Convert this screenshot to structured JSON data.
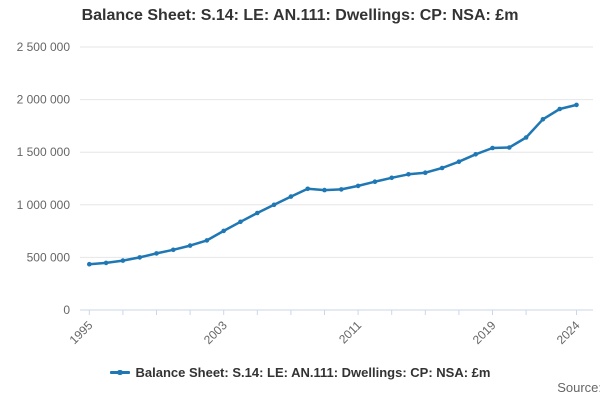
{
  "page": {
    "title": "Balance Sheet: S.14: LE: AN.111: Dwellings: CP: NSA: £m",
    "source_label": "Source:"
  },
  "legend": {
    "label": "Balance Sheet: S.14: LE: AN.111: Dwellings: CP: NSA: £m"
  },
  "colors": {
    "line": "#1f77b4",
    "grid": "#e6e6e6",
    "axis": "#ccd6eb",
    "tick_label": "#666666",
    "title_text": "#333333",
    "legend_text": "#333333",
    "source_text": "#666666",
    "background": "#ffffff"
  },
  "chart_data": {
    "type": "line",
    "title": "Balance Sheet: S.14: LE: AN.111: Dwellings: CP: NSA: £m",
    "series_name": "Balance Sheet: S.14: LE: AN.111: Dwellings: CP: NSA: £m",
    "xlabel": "",
    "ylabel": "",
    "x": [
      1995,
      1996,
      1997,
      1998,
      1999,
      2000,
      2001,
      2002,
      2003,
      2004,
      2005,
      2006,
      2007,
      2008,
      2009,
      2010,
      2011,
      2012,
      2013,
      2014,
      2015,
      2016,
      2017,
      2018,
      2019,
      2020,
      2021,
      2022,
      2023,
      2024
    ],
    "values": [
      435000,
      448000,
      470000,
      500000,
      538000,
      572000,
      612000,
      662000,
      752000,
      838000,
      922000,
      1000000,
      1078000,
      1152000,
      1140000,
      1146000,
      1180000,
      1220000,
      1257000,
      1290000,
      1305000,
      1350000,
      1410000,
      1480000,
      1540000,
      1545000,
      1640000,
      1813000,
      1911000,
      1950000
    ],
    "xlim": [
      1995,
      2024
    ],
    "ylim": [
      0,
      2500000
    ],
    "grid": "horizontal-only",
    "legend_position": "bottom-center",
    "marker": "circle",
    "y_ticks": [
      {
        "value": 0,
        "label": "0"
      },
      {
        "value": 500000,
        "label": "500 000"
      },
      {
        "value": 1000000,
        "label": "1 000 000"
      },
      {
        "value": 1500000,
        "label": "1 500 000"
      },
      {
        "value": 2000000,
        "label": "2 000 000"
      },
      {
        "value": 2500000,
        "label": "2 500 000"
      }
    ],
    "x_ticks": [
      1995,
      1997,
      1999,
      2001,
      2003,
      2005,
      2007,
      2009,
      2011,
      2013,
      2015,
      2017,
      2019,
      2021,
      2024
    ],
    "x_tick_labels": [
      {
        "year": 1995,
        "label": "1995"
      },
      {
        "year": 2003,
        "label": "2003"
      },
      {
        "year": 2011,
        "label": "2011"
      },
      {
        "year": 2019,
        "label": "2019"
      },
      {
        "year": 2024,
        "label": "2024"
      }
    ]
  }
}
